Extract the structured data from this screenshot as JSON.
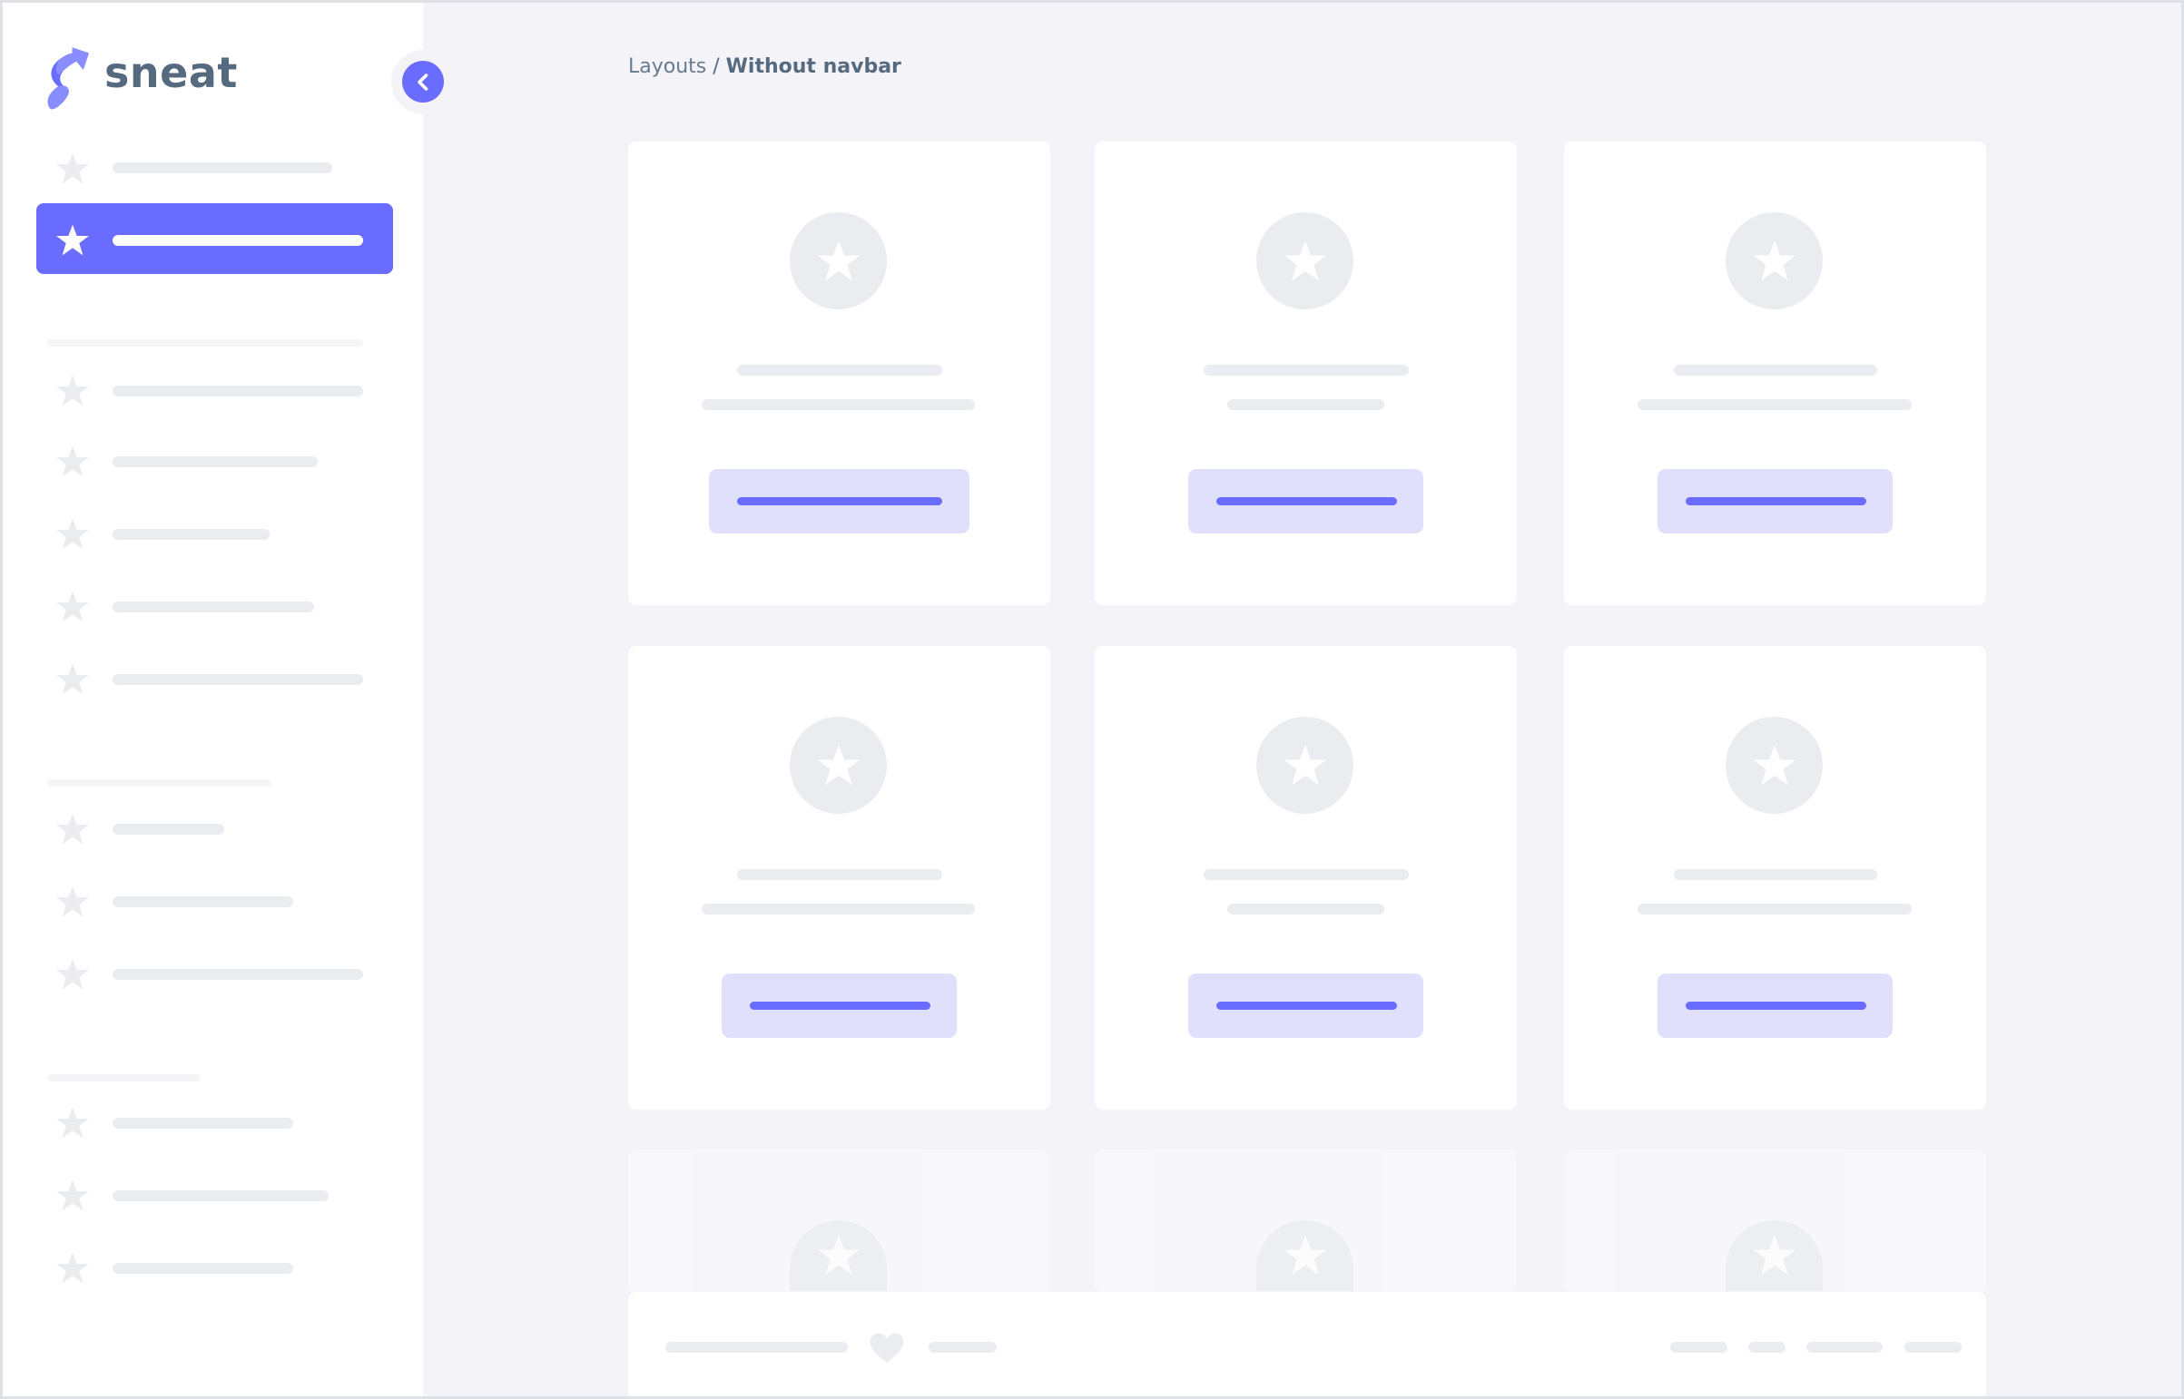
{
  "brand": {
    "name": "sneat",
    "accent": "#696cff",
    "text_color": "#566a7f"
  },
  "breadcrumb": {
    "parent": "Layouts",
    "separator": " / ",
    "current": "Without navbar"
  },
  "sidebar": {
    "toggle_icon": "chevron-left-icon",
    "item_icon": "star-icon",
    "active_index": 1
  },
  "cards": {
    "icon": "star-icon",
    "count": 9
  },
  "footer": {
    "icon": "heart-icon"
  }
}
